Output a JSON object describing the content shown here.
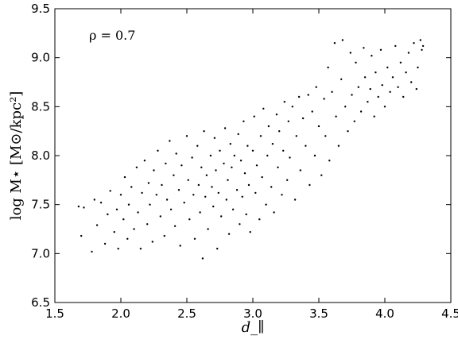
{
  "chart_data": {
    "type": "scatter",
    "title": "",
    "xlabel": "d_∥",
    "ylabel": "log M⋆ [M⊙/kpc²]",
    "xlim": [
      1.5,
      4.5
    ],
    "ylim": [
      6.5,
      9.5
    ],
    "x_ticks": [
      "1.5",
      "2.0",
      "2.5",
      "3.0",
      "3.5",
      "4.0",
      "4.5"
    ],
    "y_ticks": [
      "6.5",
      "7.0",
      "7.5",
      "8.0",
      "8.5",
      "9.0",
      "9.5"
    ],
    "annotation": "ρ = 0.7",
    "grid": false,
    "legend": "none",
    "marker_color": "#000000",
    "series": [
      {
        "name": "",
        "points": [
          [
            1.68,
            7.48
          ],
          [
            1.7,
            7.18
          ],
          [
            1.72,
            7.47
          ],
          [
            1.78,
            7.02
          ],
          [
            1.8,
            7.55
          ],
          [
            1.82,
            7.29
          ],
          [
            1.85,
            7.52
          ],
          [
            1.88,
            7.1
          ],
          [
            1.9,
            7.4
          ],
          [
            1.92,
            7.64
          ],
          [
            1.95,
            7.22
          ],
          [
            1.97,
            7.45
          ],
          [
            1.98,
            7.05
          ],
          [
            2.0,
            7.6
          ],
          [
            2.02,
            7.35
          ],
          [
            2.03,
            7.78
          ],
          [
            2.05,
            7.15
          ],
          [
            2.06,
            7.5
          ],
          [
            2.08,
            7.68
          ],
          [
            2.1,
            7.25
          ],
          [
            2.12,
            7.88
          ],
          [
            2.13,
            7.42
          ],
          [
            2.15,
            7.05
          ],
          [
            2.16,
            7.62
          ],
          [
            2.18,
            7.95
          ],
          [
            2.2,
            7.3
          ],
          [
            2.21,
            7.72
          ],
          [
            2.22,
            7.5
          ],
          [
            2.24,
            7.12
          ],
          [
            2.25,
            7.85
          ],
          [
            2.27,
            7.6
          ],
          [
            2.28,
            8.05
          ],
          [
            2.3,
            7.38
          ],
          [
            2.31,
            7.7
          ],
          [
            2.33,
            7.18
          ],
          [
            2.34,
            7.92
          ],
          [
            2.35,
            7.55
          ],
          [
            2.37,
            8.15
          ],
          [
            2.38,
            7.45
          ],
          [
            2.4,
            7.8
          ],
          [
            2.41,
            7.28
          ],
          [
            2.42,
            8.02
          ],
          [
            2.44,
            7.65
          ],
          [
            2.45,
            7.08
          ],
          [
            2.46,
            7.9
          ],
          [
            2.48,
            7.52
          ],
          [
            2.5,
            8.2
          ],
          [
            2.51,
            7.75
          ],
          [
            2.52,
            7.35
          ],
          [
            2.54,
            7.98
          ],
          [
            2.55,
            7.6
          ],
          [
            2.56,
            7.15
          ],
          [
            2.58,
            8.1
          ],
          [
            2.59,
            7.7
          ],
          [
            2.6,
            7.42
          ],
          [
            2.61,
            7.88
          ],
          [
            2.62,
            6.95
          ],
          [
            2.63,
            8.25
          ],
          [
            2.64,
            7.58
          ],
          [
            2.65,
            7.8
          ],
          [
            2.66,
            7.25
          ],
          [
            2.68,
            8.0
          ],
          [
            2.69,
            7.68
          ],
          [
            2.7,
            7.48
          ],
          [
            2.71,
            8.18
          ],
          [
            2.72,
            7.85
          ],
          [
            2.73,
            7.05
          ],
          [
            2.74,
            7.62
          ],
          [
            2.75,
            8.05
          ],
          [
            2.76,
            7.38
          ],
          [
            2.78,
            7.92
          ],
          [
            2.79,
            8.28
          ],
          [
            2.8,
            7.55
          ],
          [
            2.81,
            7.75
          ],
          [
            2.82,
            7.2
          ],
          [
            2.83,
            8.12
          ],
          [
            2.84,
            7.88
          ],
          [
            2.85,
            7.45
          ],
          [
            2.86,
            8.0
          ],
          [
            2.88,
            7.65
          ],
          [
            2.89,
            8.22
          ],
          [
            2.9,
            7.3
          ],
          [
            2.91,
            7.95
          ],
          [
            2.92,
            7.58
          ],
          [
            2.93,
            8.35
          ],
          [
            2.94,
            7.82
          ],
          [
            2.95,
            7.4
          ],
          [
            2.96,
            8.1
          ],
          [
            2.97,
            7.7
          ],
          [
            2.98,
            7.22
          ],
          [
            3.0,
            8.05
          ],
          [
            3.01,
            8.4
          ],
          [
            3.02,
            7.62
          ],
          [
            3.03,
            7.9
          ],
          [
            3.05,
            7.35
          ],
          [
            3.06,
            8.2
          ],
          [
            3.07,
            7.78
          ],
          [
            3.08,
            8.48
          ],
          [
            3.1,
            7.5
          ],
          [
            3.11,
            8.0
          ],
          [
            3.12,
            8.3
          ],
          [
            3.14,
            7.68
          ],
          [
            3.15,
            8.12
          ],
          [
            3.16,
            7.42
          ],
          [
            3.18,
            8.42
          ],
          [
            3.19,
            7.88
          ],
          [
            3.2,
            8.25
          ],
          [
            3.22,
            7.6
          ],
          [
            3.23,
            8.05
          ],
          [
            3.24,
            8.55
          ],
          [
            3.26,
            7.75
          ],
          [
            3.27,
            8.35
          ],
          [
            3.28,
            7.98
          ],
          [
            3.3,
            8.5
          ],
          [
            3.32,
            7.55
          ],
          [
            3.33,
            8.2
          ],
          [
            3.35,
            8.6
          ],
          [
            3.36,
            7.85
          ],
          [
            3.38,
            8.38
          ],
          [
            3.4,
            8.1
          ],
          [
            3.42,
            8.62
          ],
          [
            3.43,
            7.7
          ],
          [
            3.45,
            8.45
          ],
          [
            3.47,
            8.0
          ],
          [
            3.48,
            8.7
          ],
          [
            3.5,
            8.3
          ],
          [
            3.52,
            7.8
          ],
          [
            3.54,
            8.58
          ],
          [
            3.55,
            8.2
          ],
          [
            3.57,
            8.9
          ],
          [
            3.58,
            7.95
          ],
          [
            3.6,
            8.65
          ],
          [
            3.62,
            9.15
          ],
          [
            3.63,
            8.4
          ],
          [
            3.65,
            8.1
          ],
          [
            3.67,
            8.78
          ],
          [
            3.68,
            9.18
          ],
          [
            3.7,
            8.5
          ],
          [
            3.72,
            8.25
          ],
          [
            3.74,
            9.05
          ],
          [
            3.75,
            8.62
          ],
          [
            3.77,
            8.35
          ],
          [
            3.78,
            8.95
          ],
          [
            3.8,
            8.7
          ],
          [
            3.82,
            8.45
          ],
          [
            3.84,
            9.1
          ],
          [
            3.85,
            8.8
          ],
          [
            3.87,
            8.55
          ],
          [
            3.89,
            8.68
          ],
          [
            3.9,
            9.02
          ],
          [
            3.92,
            8.4
          ],
          [
            3.93,
            8.85
          ],
          [
            3.95,
            8.6
          ],
          [
            3.97,
            9.08
          ],
          [
            3.98,
            8.72
          ],
          [
            4.0,
            8.5
          ],
          [
            4.02,
            8.9
          ],
          [
            4.04,
            8.65
          ],
          [
            4.06,
            8.8
          ],
          [
            4.08,
            9.12
          ],
          [
            4.1,
            8.7
          ],
          [
            4.12,
            8.95
          ],
          [
            4.14,
            8.6
          ],
          [
            4.16,
            8.85
          ],
          [
            4.18,
            9.05
          ],
          [
            4.2,
            8.75
          ],
          [
            4.22,
            9.15
          ],
          [
            4.24,
            8.68
          ],
          [
            4.25,
            8.9
          ],
          [
            4.27,
            9.18
          ],
          [
            4.28,
            9.08
          ],
          [
            4.29,
            9.12
          ]
        ]
      }
    ]
  }
}
